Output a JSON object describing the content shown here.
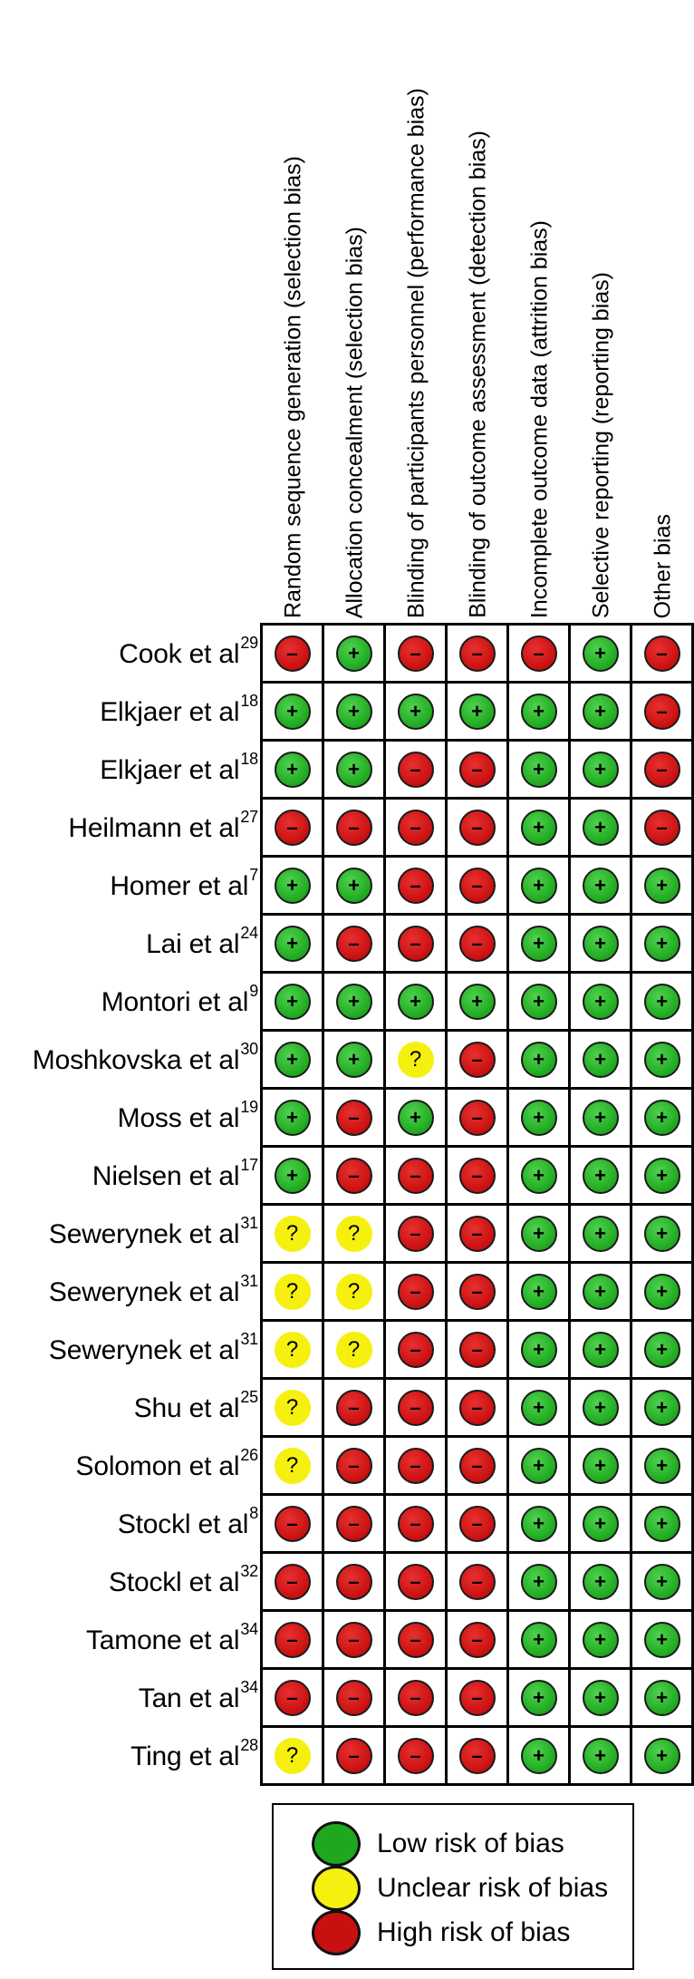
{
  "columns": [
    "Random sequence generation (selection bias)",
    "Allocation concealment (selection bias)",
    "Blinding of participants personnel (performance bias)",
    "Blinding of  outcome assessment (detection bias)",
    "Incomplete outcome data (attrition bias)",
    "Selective reporting (reporting bias)",
    "Other bias"
  ],
  "symbols": {
    "low": "+",
    "unclear": "?",
    "high": "–"
  },
  "colors": {
    "low": "#1fa81f",
    "unclear": "#f5f010",
    "high": "#c81010"
  },
  "rows": [
    {
      "name": "Cook et al",
      "ref": "29",
      "ratings": [
        "high",
        "low",
        "high",
        "high",
        "high",
        "low",
        "high"
      ]
    },
    {
      "name": "Elkjaer et al",
      "ref": "18",
      "ratings": [
        "low",
        "low",
        "low",
        "low",
        "low",
        "low",
        "high"
      ]
    },
    {
      "name": "Elkjaer et al",
      "ref": "18",
      "ratings": [
        "low",
        "low",
        "high",
        "high",
        "low",
        "low",
        "high"
      ]
    },
    {
      "name": "Heilmann et al",
      "ref": "27",
      "ratings": [
        "high",
        "high",
        "high",
        "high",
        "low",
        "low",
        "high"
      ]
    },
    {
      "name": "Homer et al",
      "ref": "7",
      "ratings": [
        "low",
        "low",
        "high",
        "high",
        "low",
        "low",
        "low"
      ]
    },
    {
      "name": "Lai et al",
      "ref": "24",
      "ratings": [
        "low",
        "high",
        "high",
        "high",
        "low",
        "low",
        "low"
      ]
    },
    {
      "name": "Montori et al",
      "ref": "9",
      "ratings": [
        "low",
        "low",
        "low",
        "low",
        "low",
        "low",
        "low"
      ]
    },
    {
      "name": "Moshkovska et al",
      "ref": "30",
      "ratings": [
        "low",
        "low",
        "unclear",
        "high",
        "low",
        "low",
        "low"
      ]
    },
    {
      "name": "Moss et al",
      "ref": "19",
      "ratings": [
        "low",
        "high",
        "low",
        "high",
        "low",
        "low",
        "low"
      ]
    },
    {
      "name": "Nielsen et al",
      "ref": "17",
      "ratings": [
        "low",
        "high",
        "high",
        "high",
        "low",
        "low",
        "low"
      ]
    },
    {
      "name": "Sewerynek et al",
      "ref": "31",
      "ratings": [
        "unclear",
        "unclear",
        "high",
        "high",
        "low",
        "low",
        "low"
      ]
    },
    {
      "name": "Sewerynek et al",
      "ref": "31",
      "ratings": [
        "unclear",
        "unclear",
        "high",
        "high",
        "low",
        "low",
        "low"
      ]
    },
    {
      "name": "Sewerynek et al",
      "ref": "31",
      "ratings": [
        "unclear",
        "unclear",
        "high",
        "high",
        "low",
        "low",
        "low"
      ]
    },
    {
      "name": "Shu et al",
      "ref": "25",
      "ratings": [
        "unclear",
        "high",
        "high",
        "high",
        "low",
        "low",
        "low"
      ]
    },
    {
      "name": "Solomon et al",
      "ref": "26",
      "ratings": [
        "unclear",
        "high",
        "high",
        "high",
        "low",
        "low",
        "low"
      ]
    },
    {
      "name": "Stockl et al",
      "ref": "8",
      "ratings": [
        "high",
        "high",
        "high",
        "high",
        "low",
        "low",
        "low"
      ]
    },
    {
      "name": "Stockl et al",
      "ref": "32",
      "ratings": [
        "high",
        "high",
        "high",
        "high",
        "low",
        "low",
        "low"
      ]
    },
    {
      "name": "Tamone et al",
      "ref": "34",
      "ratings": [
        "high",
        "high",
        "high",
        "high",
        "low",
        "low",
        "low"
      ]
    },
    {
      "name": "Tan et al",
      "ref": "34",
      "ratings": [
        "high",
        "high",
        "high",
        "high",
        "low",
        "low",
        "low"
      ]
    },
    {
      "name": "Ting et al",
      "ref": "28",
      "ratings": [
        "unclear",
        "high",
        "high",
        "high",
        "low",
        "low",
        "low"
      ]
    }
  ],
  "legend": [
    {
      "key": "low",
      "label": "Low risk of bias"
    },
    {
      "key": "unclear",
      "label": "Unclear risk of bias"
    },
    {
      "key": "high",
      "label": "High risk of bias"
    }
  ]
}
